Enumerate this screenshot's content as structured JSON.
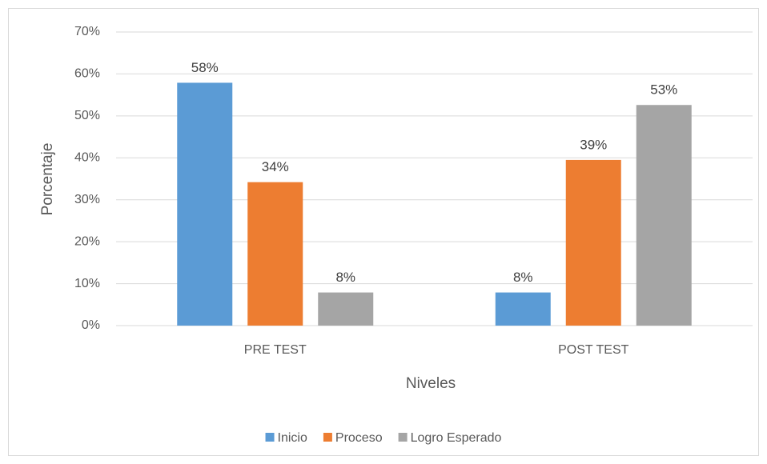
{
  "chart_data": {
    "type": "bar",
    "x_label": "Niveles",
    "y_label": "Porcentaje",
    "categories": [
      "PRE TEST",
      "POST TEST"
    ],
    "series": [
      {
        "name": "Inicio",
        "color": "#5b9bd5",
        "values": [
          57.9,
          7.9
        ],
        "value_labels": [
          "58%",
          "8%"
        ]
      },
      {
        "name": "Proceso",
        "color": "#ed7d31",
        "values": [
          34.2,
          39.5
        ],
        "value_labels": [
          "34%",
          "39%"
        ]
      },
      {
        "name": "Logro Esperado",
        "color": "#a5a5a5",
        "values": [
          7.9,
          52.6
        ],
        "value_labels": [
          "8%",
          "53%"
        ]
      }
    ],
    "ylim": [
      0,
      70
    ],
    "yticks": [
      {
        "value": 0,
        "label": "0%"
      },
      {
        "value": 10,
        "label": "10%"
      },
      {
        "value": 20,
        "label": "20%"
      },
      {
        "value": 30,
        "label": "30%"
      },
      {
        "value": 40,
        "label": "40%"
      },
      {
        "value": 50,
        "label": "50%"
      },
      {
        "value": 60,
        "label": "60%"
      },
      {
        "value": 70,
        "label": "70%"
      }
    ],
    "grid": true,
    "legend": "bottom"
  }
}
